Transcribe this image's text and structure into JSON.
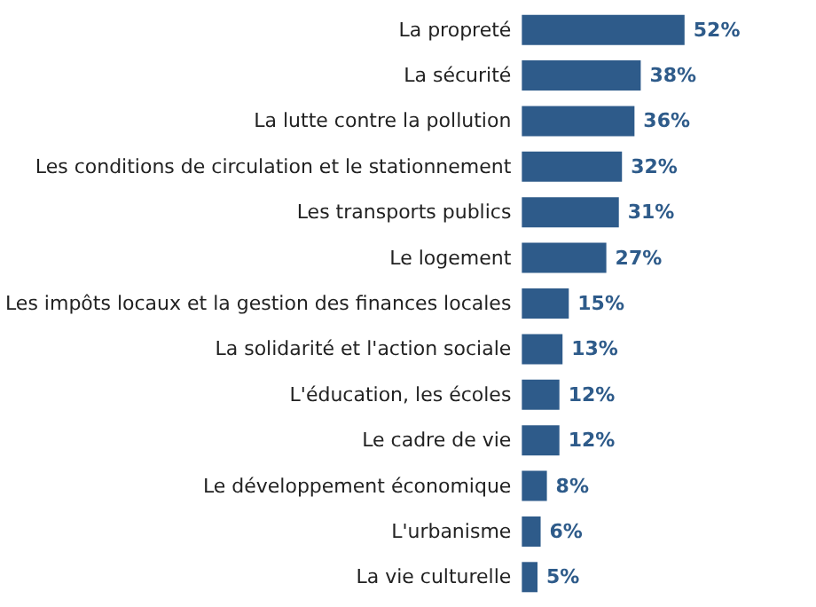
{
  "chart_data": {
    "type": "bar",
    "orientation": "horizontal",
    "data_labels": true,
    "color": "#2e5b8a",
    "categories": [
      "La propreté",
      "La sécurité",
      "La lutte contre la pollution",
      "Les conditions de circulation et le stationnement",
      "Les transports publics",
      "Le logement",
      "Les impôts locaux et la gestion des finances locales",
      "La solidarité et l'action sociale",
      "L'éducation, les écoles",
      "Le cadre de vie",
      "Le développement économique",
      "L'urbanisme",
      "La vie culturelle"
    ],
    "values": [
      52,
      38,
      36,
      32,
      31,
      27,
      15,
      13,
      12,
      12,
      8,
      6,
      5
    ],
    "value_labels": [
      "52%",
      "38%",
      "36%",
      "32%",
      "31%",
      "27%",
      "15%",
      "13%",
      "12%",
      "12%",
      "8%",
      "6%",
      "5%"
    ]
  }
}
